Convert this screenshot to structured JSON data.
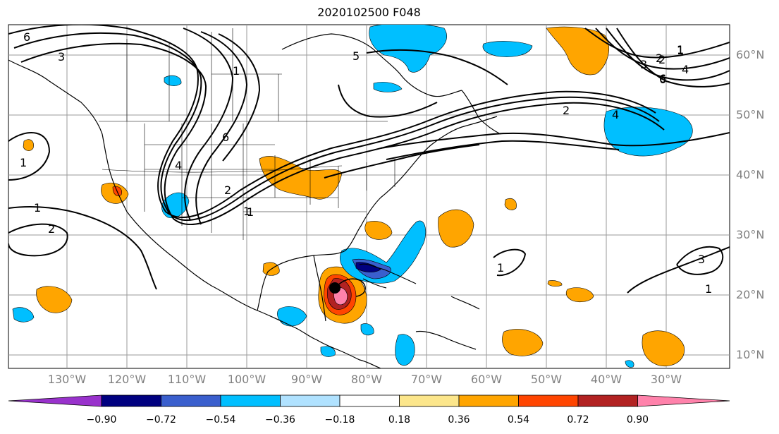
{
  "title": "2020102500 F048",
  "lat_labels": [
    "60°N",
    "50°N",
    "40°N",
    "30°N",
    "20°N",
    "10°N"
  ],
  "lon_labels": [
    "130°W",
    "120°W",
    "110°W",
    "100°W",
    "90°W",
    "80°W",
    "70°W",
    "60°W",
    "50°W",
    "40°W",
    "30°W"
  ],
  "colorbar": {
    "ticks": [
      "−0.90",
      "−0.72",
      "−0.54",
      "−0.36",
      "−0.18",
      "0.18",
      "0.36",
      "0.54",
      "0.72",
      "0.90"
    ],
    "colors": [
      "#9932cc",
      "#000080",
      "#3a5fcd",
      "#00bfff",
      "#b0e2ff",
      "#ffffff",
      "#fce68b",
      "#ffa500",
      "#ff4500",
      "#b22222",
      "#ff82ab"
    ]
  },
  "contour_labels": [
    "6",
    "3",
    "1",
    "2",
    "4",
    "6",
    "5",
    "1",
    "2",
    "3",
    "4",
    "6",
    "2",
    "4",
    "1",
    "2",
    "1",
    "3",
    "1",
    "1",
    "6",
    "2",
    "1",
    "1",
    "1"
  ],
  "storm_marker": {
    "name": "storm-center",
    "lat": 21.3,
    "lon": -85.5
  }
}
